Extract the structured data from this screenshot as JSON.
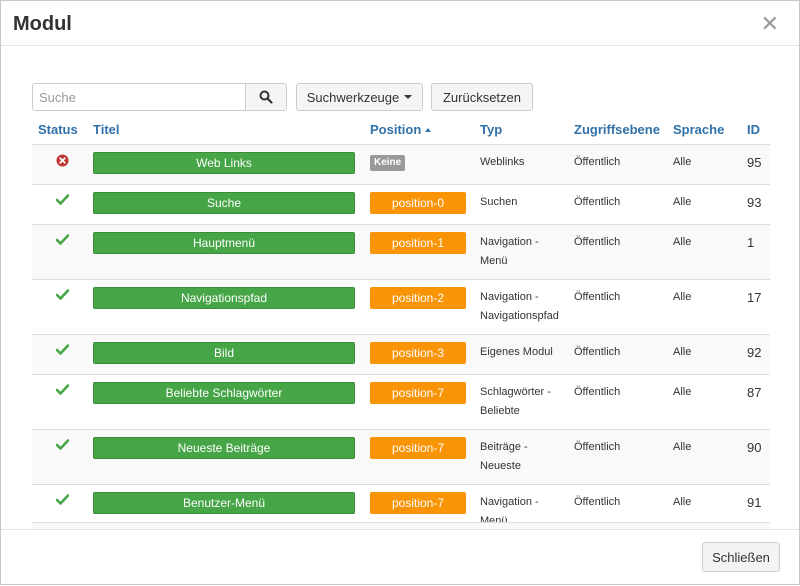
{
  "modal": {
    "title": "Modul",
    "close_icon": "close-icon",
    "footer_close_label": "Schließen"
  },
  "toolbar": {
    "search_placeholder": "Suche",
    "search_value": "",
    "search_icon": "search-icon",
    "tools_label": "Suchwerkzeuge",
    "reset_label": "Zurücksetzen"
  },
  "table": {
    "headers": {
      "status": "Status",
      "title": "Titel",
      "position": "Position",
      "type": "Typ",
      "access": "Zugriffsebene",
      "language": "Sprache",
      "id": "ID"
    },
    "sort_column": "position",
    "sort_direction": "asc",
    "rows": [
      {
        "status": "unpublished",
        "title": "Web Links",
        "position": "Keine",
        "type_line1": "Weblinks",
        "type_line2": "",
        "access": "Öffentlich",
        "language": "Alle",
        "id": "95"
      },
      {
        "status": "published",
        "title": "Suche",
        "position": "position-0",
        "type_line1": "Suchen",
        "type_line2": "",
        "access": "Öffentlich",
        "language": "Alle",
        "id": "93"
      },
      {
        "status": "published",
        "title": "Hauptmenü",
        "position": "position-1",
        "type_line1": "Navigation -",
        "type_line2": "Menü",
        "access": "Öffentlich",
        "language": "Alle",
        "id": "1"
      },
      {
        "status": "published",
        "title": "Navigationspfad",
        "position": "position-2",
        "type_line1": "Navigation -",
        "type_line2": "Navigationspfad",
        "access": "Öffentlich",
        "language": "Alle",
        "id": "17"
      },
      {
        "status": "published",
        "title": "Bild",
        "position": "position-3",
        "type_line1": "Eigenes Modul",
        "type_line2": "",
        "access": "Öffentlich",
        "language": "Alle",
        "id": "92"
      },
      {
        "status": "published",
        "title": "Beliebte Schlagwörter",
        "position": "position-7",
        "type_line1": "Schlagwörter -",
        "type_line2": "Beliebte",
        "access": "Öffentlich",
        "language": "Alle",
        "id": "87"
      },
      {
        "status": "published",
        "title": "Neueste Beiträge",
        "position": "position-7",
        "type_line1": "Beiträge -",
        "type_line2": "Neueste",
        "access": "Öffentlich",
        "language": "Alle",
        "id": "90"
      },
      {
        "status": "published",
        "title": "Benutzer-Menü",
        "position": "position-7",
        "type_line1": "Navigation -",
        "type_line2": "Menü",
        "access": "Öffentlich",
        "language": "Alle",
        "id": "91"
      }
    ]
  },
  "colors": {
    "published": "#46a546",
    "unpublished": "#bd362f",
    "position": "#f89406",
    "position_none": "#999999",
    "header_link": "#3071a9"
  }
}
